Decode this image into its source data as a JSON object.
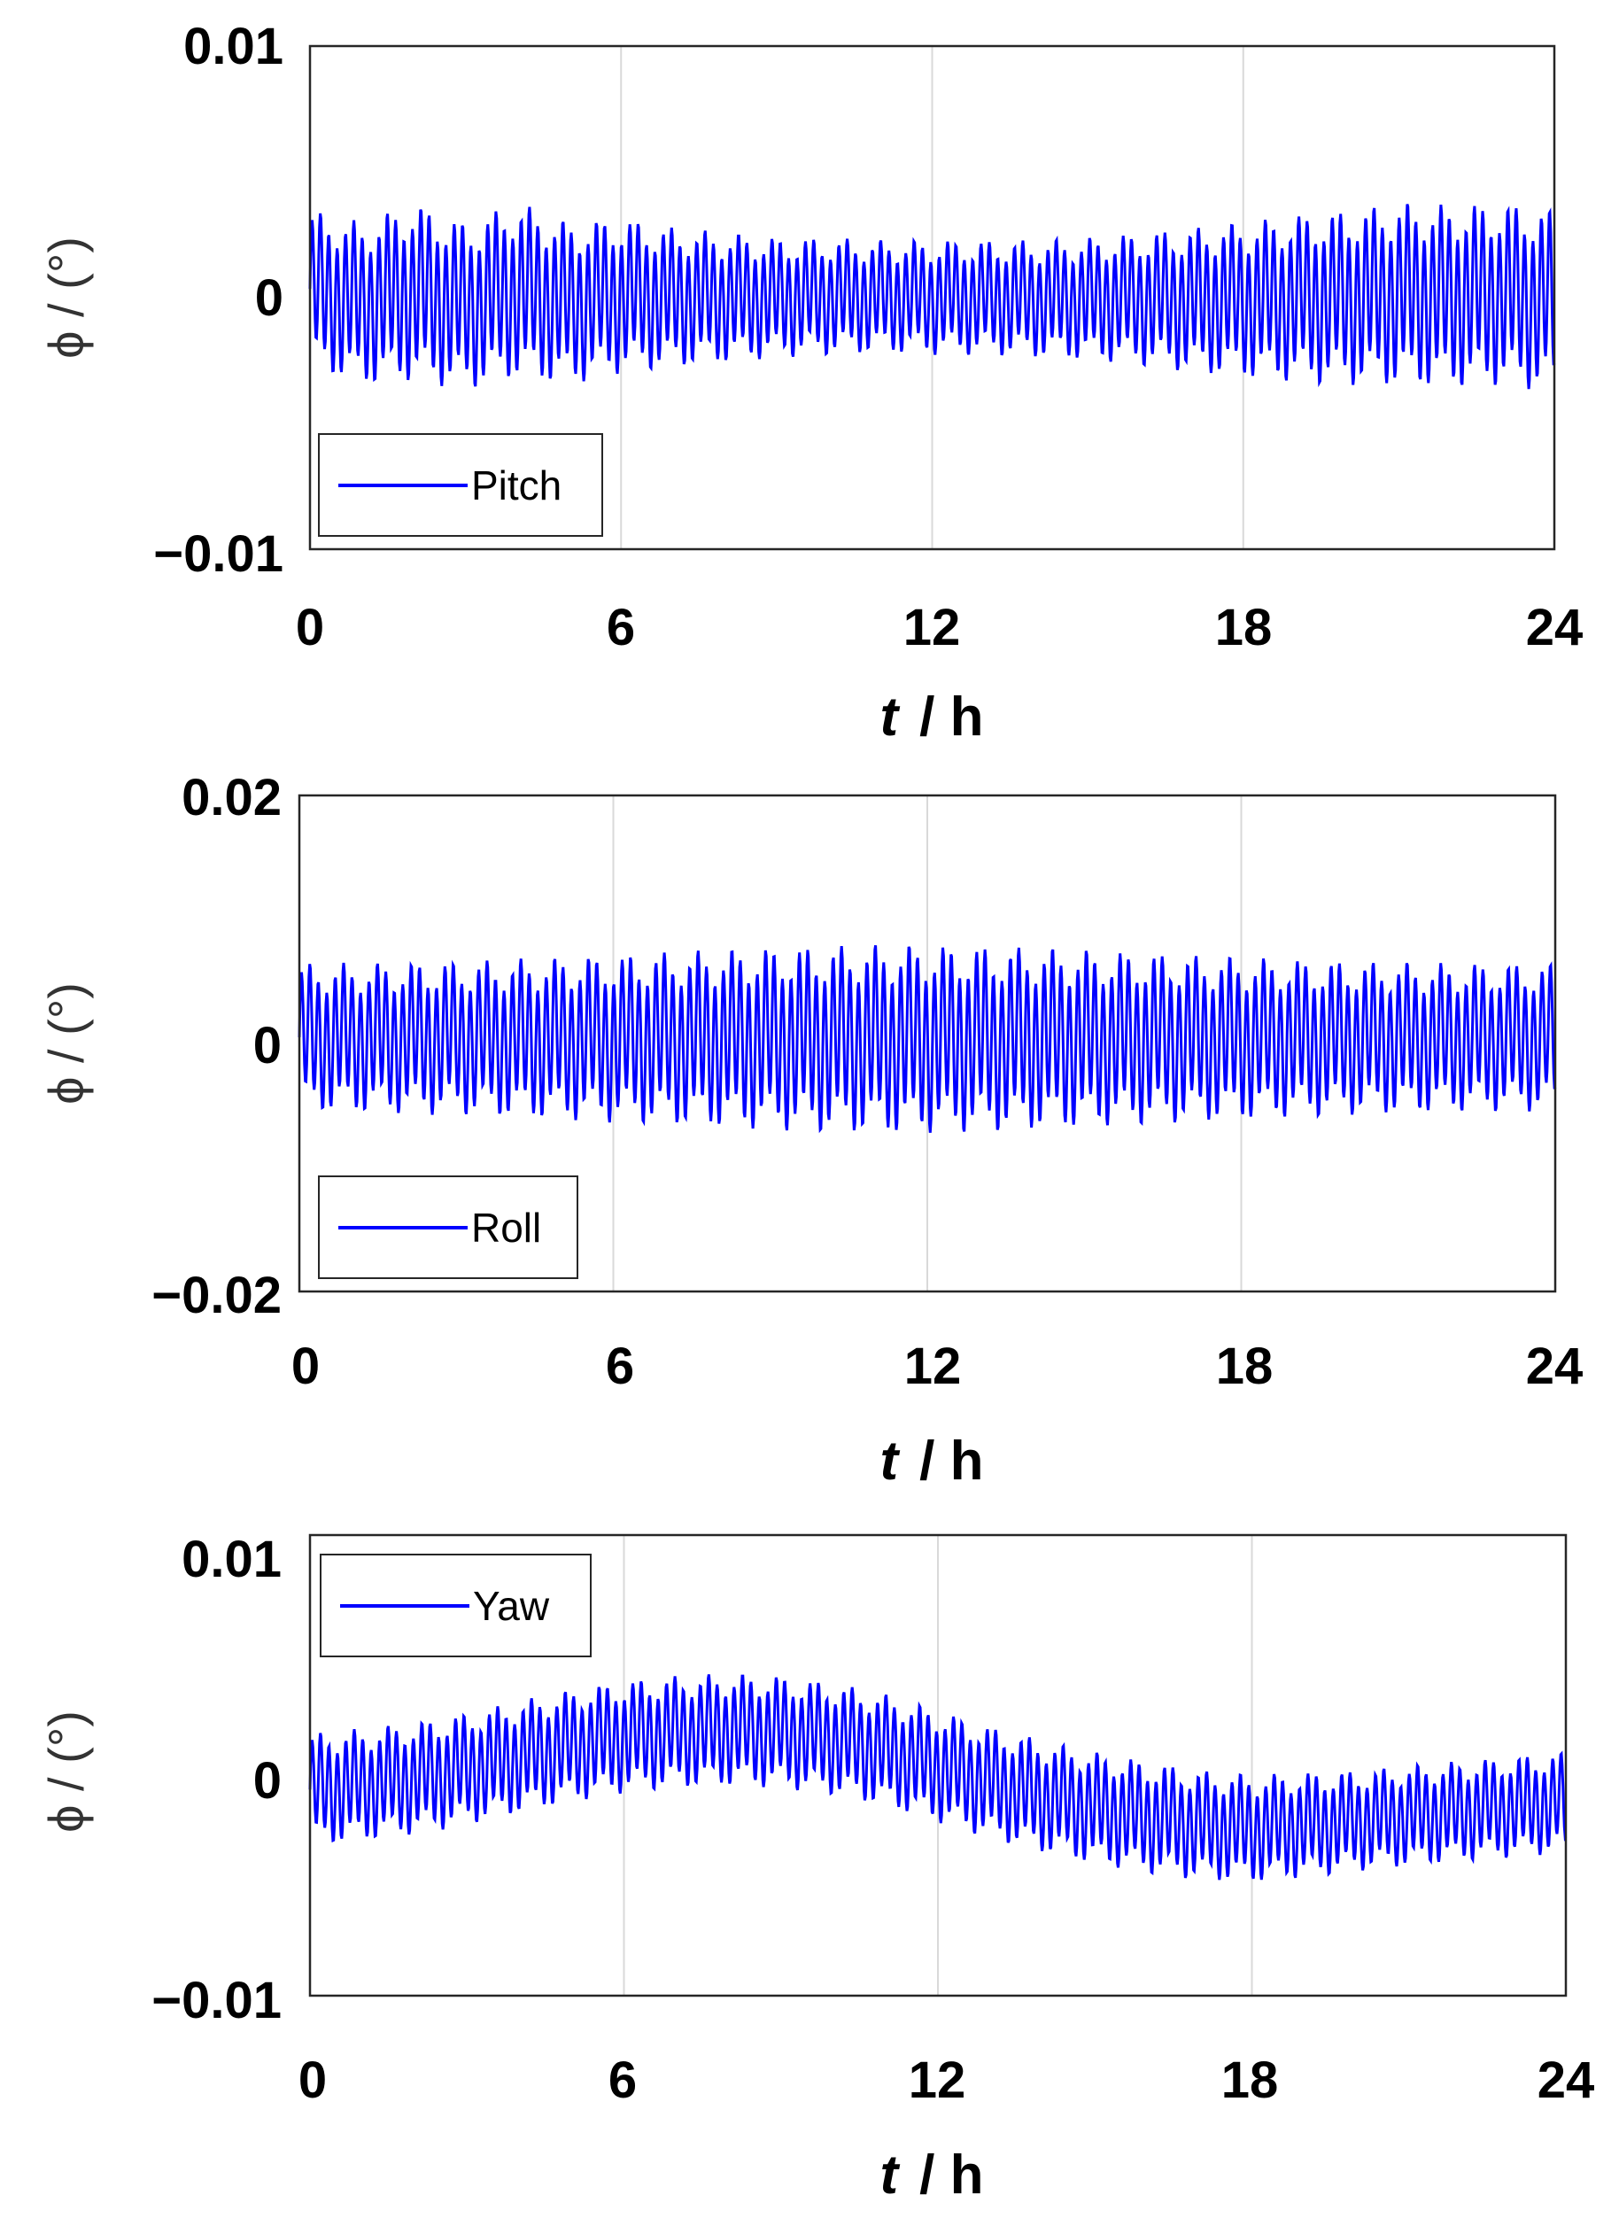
{
  "chart_data": [
    {
      "type": "line",
      "x_range": [
        0,
        24
      ],
      "y_range": [
        -0.01,
        0.01
      ],
      "x_ticks": [
        "0",
        "6",
        "12",
        "18",
        "24"
      ],
      "y_ticks": [
        "0.01",
        "0",
        "−0.01"
      ],
      "xlabel_var": "t",
      "xlabel_unit": "/ h",
      "ylabel": "ϕ / (°)",
      "grid": "vertical",
      "legend_position": "bottom-left",
      "series": [
        {
          "name": "Pitch",
          "color": "#0000ff",
          "x": [
            0,
            1,
            2,
            3,
            4,
            5,
            6,
            7,
            8,
            9,
            10,
            11,
            12,
            13,
            14,
            15,
            16,
            17,
            18,
            19,
            20,
            21,
            22,
            23,
            24
          ],
          "y_upper": [
            0.0035,
            0.003,
            0.0038,
            0.003,
            0.0038,
            0.003,
            0.0032,
            0.0028,
            0.0026,
            0.0024,
            0.0024,
            0.0023,
            0.0023,
            0.0023,
            0.0023,
            0.0024,
            0.0026,
            0.0028,
            0.003,
            0.0033,
            0.0035,
            0.0038,
            0.0037,
            0.0038,
            0.0035
          ],
          "y_lower": [
            -0.0028,
            -0.0035,
            -0.0033,
            -0.0037,
            -0.0032,
            -0.0035,
            -0.003,
            -0.0028,
            -0.0026,
            -0.0024,
            -0.0023,
            -0.0022,
            -0.0023,
            -0.0023,
            -0.0024,
            -0.0025,
            -0.0027,
            -0.003,
            -0.0032,
            -0.0034,
            -0.0035,
            -0.0035,
            -0.0036,
            -0.0035,
            -0.0038
          ]
        }
      ]
    },
    {
      "type": "line",
      "x_range": [
        0,
        24
      ],
      "y_range": [
        -0.02,
        0.02
      ],
      "x_ticks": [
        "0",
        "6",
        "12",
        "18",
        "24"
      ],
      "y_ticks": [
        "0.02",
        "0",
        "−0.02"
      ],
      "xlabel_var": "t",
      "xlabel_unit": "/ h",
      "ylabel": "ϕ / (°)",
      "grid": "vertical",
      "legend_position": "bottom-left",
      "series": [
        {
          "name": "Roll",
          "color": "#0000ff",
          "x": [
            0,
            1,
            2,
            3,
            4,
            5,
            6,
            7,
            8,
            9,
            10,
            11,
            12,
            13,
            14,
            15,
            16,
            17,
            18,
            19,
            20,
            21,
            22,
            23,
            24
          ],
          "y_upper": [
            0.0065,
            0.0065,
            0.0066,
            0.0067,
            0.0068,
            0.007,
            0.0072,
            0.0074,
            0.0076,
            0.0078,
            0.0079,
            0.008,
            0.008,
            0.0079,
            0.0078,
            0.0076,
            0.0074,
            0.0072,
            0.007,
            0.0068,
            0.0067,
            0.0066,
            0.0065,
            0.0065,
            0.0065
          ],
          "y_lower": [
            -0.0055,
            -0.0056,
            -0.0057,
            -0.0058,
            -0.006,
            -0.0062,
            -0.0064,
            -0.0066,
            -0.0068,
            -0.007,
            -0.0072,
            -0.0073,
            -0.0073,
            -0.0072,
            -0.007,
            -0.0068,
            -0.0066,
            -0.0064,
            -0.0062,
            -0.006,
            -0.0058,
            -0.0057,
            -0.0056,
            -0.0055,
            -0.0055
          ]
        }
      ]
    },
    {
      "type": "line",
      "x_range": [
        0,
        24
      ],
      "y_range": [
        -0.01,
        0.01
      ],
      "x_ticks": [
        "0",
        "6",
        "12",
        "18",
        "24"
      ],
      "y_ticks": [
        "0.01",
        "0",
        "−0.01"
      ],
      "xlabel_var": "t",
      "xlabel_unit": "/ h",
      "ylabel": "ϕ / (°)",
      "grid": "vertical",
      "legend_position": "top-left",
      "series": [
        {
          "name": "Yaw",
          "color": "#0000ff",
          "x": [
            0,
            1,
            2,
            3,
            4,
            5,
            6,
            7,
            8,
            9,
            10,
            11,
            12,
            13,
            14,
            15,
            16,
            17,
            18,
            19,
            20,
            21,
            22,
            23,
            24
          ],
          "y_upper": [
            0.0014,
            0.0016,
            0.0019,
            0.0023,
            0.0028,
            0.0033,
            0.0037,
            0.0039,
            0.004,
            0.0039,
            0.0036,
            0.0031,
            0.0024,
            0.0017,
            0.0011,
            0.0006,
            0.0002,
            -0.0002,
            -0.0004,
            -0.0003,
            -0.0002,
            0.0,
            0.0002,
            0.0004,
            0.0006
          ],
          "y_lower": [
            -0.0035,
            -0.0033,
            -0.003,
            -0.0026,
            -0.0021,
            -0.0016,
            -0.0012,
            -0.001,
            -0.0009,
            -0.001,
            -0.0013,
            -0.0018,
            -0.0025,
            -0.0032,
            -0.0038,
            -0.0043,
            -0.0047,
            -0.005,
            -0.0051,
            -0.0049,
            -0.0046,
            -0.0044,
            -0.0042,
            -0.004,
            -0.0038
          ]
        }
      ]
    }
  ]
}
